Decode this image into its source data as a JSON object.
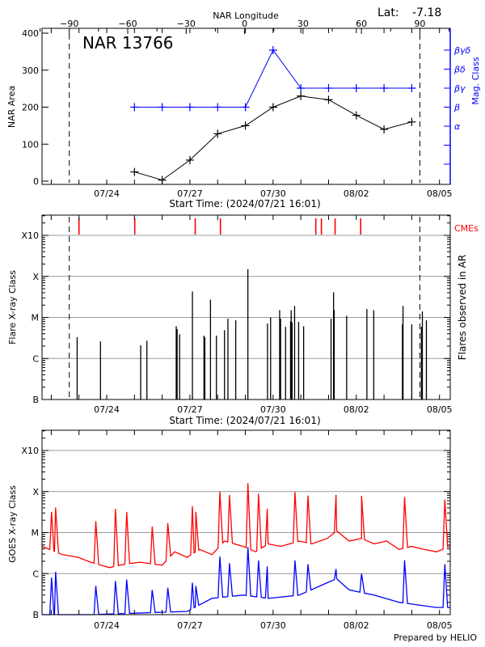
{
  "header": {
    "lat_label": "Lat:",
    "lat_value": "-7.18",
    "credit": "Prepared by HELIO"
  },
  "colors": {
    "area_line": "#000000",
    "mag_class_line": "#0000ff",
    "cme_marker": "#ff0000",
    "flare_bar": "#000000",
    "goes_long": "#ff0000",
    "goes_short": "#0000ff",
    "grid": "#999999"
  },
  "x_axis": {
    "range": [
      "07/21 16:01",
      "08/05 09:18"
    ],
    "year": 2024,
    "tick_labels": [
      "07/24",
      "07/27",
      "07/30",
      "08/02",
      "08/05"
    ],
    "minor_ticks": "daily",
    "title": "Start Time: (2024/07/21 16:01)"
  },
  "chart_data": [
    {
      "type": "line",
      "title": "NAR 13766",
      "top_axis": {
        "label": "NAR Longitude",
        "range": [
          -104,
          105.6
        ],
        "ticks": [
          -90,
          -60,
          -30,
          0,
          30,
          60,
          90
        ],
        "limb_lines": [
          -90,
          90
        ]
      },
      "ylabel": "NAR Area",
      "ylim": [
        0,
        400
      ],
      "yticks": [
        0,
        100,
        200,
        300,
        400
      ],
      "y2label": "Mag. Class",
      "y2_classes": [
        "α",
        "β",
        "βγ",
        "βδ",
        "βγδ"
      ],
      "series": [
        {
          "key": "area",
          "x": [
            "07/25 00:00",
            "07/26 00:00",
            "07/27 00:00",
            "07/28 00:00",
            "07/29 00:00",
            "07/30 00:00",
            "07/31 00:00",
            "08/01 00:00",
            "08/02 00:00",
            "08/03 00:00",
            "08/04 00:00"
          ],
          "values": [
            25,
            3,
            57,
            128,
            150,
            200,
            230,
            220,
            178,
            140,
            160
          ]
        },
        {
          "key": "mag_class",
          "x": [
            "07/25 00:00",
            "07/26 00:00",
            "07/27 00:00",
            "07/28 00:00",
            "07/29 00:00",
            "07/30 00:00",
            "07/31 00:00",
            "08/01 00:00",
            "08/02 00:00",
            "08/03 00:00",
            "08/04 00:00"
          ],
          "values": [
            "β",
            "β",
            "β",
            "β",
            "β",
            "βγδ",
            "βγ",
            "βγ",
            "βγ",
            "βγ",
            "βγ"
          ]
        }
      ]
    },
    {
      "type": "bar",
      "ylabel": "Flare X-ray Class",
      "y2label": "Flares observed in AR",
      "yscale": "log",
      "ytick_labels": [
        "B",
        "C",
        "M",
        "X",
        "X10"
      ],
      "cme_label": "CMEs",
      "cmes": [
        "07/23 00:00",
        "07/25 00:16",
        "07/27 04:35",
        "07/28 02:25",
        "07/31 12:56",
        "07/31 17:48",
        "08/01 05:40",
        "08/02 03:46"
      ],
      "flares": [
        [
          "07/22 22:24",
          "C3.3"
        ],
        [
          "07/23 18:36",
          "C2.6"
        ],
        [
          "07/25 05:24",
          "C2.1"
        ],
        [
          "07/25 10:47",
          "C2.7"
        ],
        [
          "07/26 12:09",
          "C6.1"
        ],
        [
          "07/26 12:56",
          "C5.2"
        ],
        [
          "07/26 15:06",
          "C3.9"
        ],
        [
          "07/27 02:10",
          "M4.3"
        ],
        [
          "07/27 12:09",
          "C3.6"
        ],
        [
          "07/27 12:56",
          "C3.3"
        ],
        [
          "07/27 17:48",
          "M2.7"
        ],
        [
          "07/27 22:55",
          "C3.6"
        ],
        [
          "07/28 05:56",
          "C4.9"
        ],
        [
          "07/28 08:54",
          "C9.3"
        ],
        [
          "07/28 15:39",
          "C8.5"
        ],
        [
          "07/29 02:10",
          "X1.5"
        ],
        [
          "07/29 19:09",
          "C7.1"
        ],
        [
          "07/29 21:50",
          "M1.0"
        ],
        [
          "07/30 05:40",
          "M1.5"
        ],
        [
          "07/30 06:29",
          "C9.3"
        ],
        [
          "07/30 10:47",
          "C5.9"
        ],
        [
          "07/30 15:06",
          "C8.1"
        ],
        [
          "07/30 15:39",
          "M1.5"
        ],
        [
          "07/30 16:26",
          "C7.6"
        ],
        [
          "07/30 18:36",
          "M1.9"
        ],
        [
          "07/30 22:06",
          "C7.8"
        ],
        [
          "07/31 02:25",
          "C6.1"
        ],
        [
          "08/01 02:10",
          "C9.3"
        ],
        [
          "08/01 04:19",
          "M4.1"
        ],
        [
          "08/01 04:51",
          "M1.5"
        ],
        [
          "08/01 15:39",
          "M1.1"
        ],
        [
          "08/02 09:10",
          "M1.6"
        ],
        [
          "08/02 15:06",
          "M1.5"
        ],
        [
          "08/03 15:55",
          "C6.8"
        ],
        [
          "08/03 16:26",
          "M1.9"
        ],
        [
          "08/04 00:00",
          "C6.8"
        ],
        [
          "08/04 08:21",
          "C5.9"
        ],
        [
          "08/04 09:10",
          "M1.4"
        ],
        [
          "08/04 12:40",
          "C8.5"
        ]
      ]
    },
    {
      "type": "line",
      "ylabel": "GOES X-ray Class",
      "yscale": "log",
      "ytick_labels": [
        "B",
        "C",
        "M",
        "X",
        "X10"
      ],
      "series": [
        {
          "key": "goes_long",
          "baseline": [
            [
              "07/21 16:10",
              4.6e-06
            ],
            [
              "07/22 09:42",
              2.9e-06
            ],
            [
              "07/22 23:12",
              2.5e-06
            ],
            [
              "07/23 10:00",
              1.9e-06
            ],
            [
              "07/24 02:10",
              1.4e-06
            ],
            [
              "07/24 15:39",
              1.7e-06
            ],
            [
              "07/25 05:07",
              1.9e-06
            ],
            [
              "07/26 00:00",
              1.6e-06
            ],
            [
              "07/26 10:47",
              3.4e-06
            ],
            [
              "07/26 21:34",
              2.5e-06
            ],
            [
              "07/27 08:21",
              3.9e-06
            ],
            [
              "07/27 19:09",
              2.9e-06
            ],
            [
              "07/28 05:56",
              6.2e-06
            ],
            [
              "07/28 22:06",
              4.6e-06
            ],
            [
              "07/29 08:54",
              3.4e-06
            ],
            [
              "07/29 19:41",
              5.3e-06
            ],
            [
              "07/30 06:29",
              4.6e-06
            ],
            [
              "07/30 22:39",
              6.2e-06
            ],
            [
              "07/31 09:26",
              5.3e-06
            ],
            [
              "07/31 22:55",
              7.2e-06
            ],
            [
              "08/01 07:00",
              1.1e-05
            ],
            [
              "08/01 17:48",
              6.2e-06
            ],
            [
              "08/02 04:35",
              7.2e-06
            ],
            [
              "08/02 15:22",
              5.3e-06
            ],
            [
              "08/03 02:10",
              6.2e-06
            ],
            [
              "08/03 12:56",
              3.9e-06
            ],
            [
              "08/03 23:44",
              4.6e-06
            ],
            [
              "08/04 10:31",
              3.9e-06
            ],
            [
              "08/04 21:19",
              3.4e-06
            ],
            [
              "08/05 09:00",
              4.6e-06
            ]
          ],
          "peaks": [
            [
              "07/22 00:16",
              3.2e-05
            ],
            [
              "07/22 03:46",
              4.1e-05
            ],
            [
              "07/23 14:34",
              1.9e-05
            ],
            [
              "07/24 07:33",
              3.8e-05
            ],
            [
              "07/24 17:15",
              3.2e-05
            ],
            [
              "07/25 15:22",
              1.4e-05
            ],
            [
              "07/26 04:51",
              1.7e-05
            ],
            [
              "07/27 02:10",
              4.4e-05
            ],
            [
              "07/27 05:07",
              3.2e-05
            ],
            [
              "07/28 01:54",
              0.0001
            ],
            [
              "07/28 10:15",
              8.2e-05
            ],
            [
              "07/29 02:10",
              0.00016
            ],
            [
              "07/29 11:20",
              8.9e-05
            ],
            [
              "07/29 18:53",
              3.8e-05
            ],
            [
              "07/30 18:53",
              9.7e-05
            ],
            [
              "07/31 06:12",
              8e-05
            ],
            [
              "08/01 06:29",
              8.3e-05
            ],
            [
              "08/02 04:35",
              7.8e-05
            ],
            [
              "08/03 17:48",
              7.4e-05
            ],
            [
              "08/05 04:35",
              6.4e-05
            ]
          ]
        },
        {
          "key": "goes_short",
          "baseline": [
            [
              "07/21 16:10",
              1e-07
            ],
            [
              "07/23 10:00",
              1e-07
            ],
            [
              "07/26 21:34",
              1.2e-07
            ],
            [
              "07/27 19:09",
              2.5e-07
            ],
            [
              "07/28 22:06",
              3e-07
            ],
            [
              "07/29 19:41",
              2.5e-07
            ],
            [
              "07/30 22:39",
              3e-07
            ],
            [
              "07/31 22:55",
              6e-07
            ],
            [
              "08/01 07:00",
              7.5e-07
            ],
            [
              "08/01 17:48",
              4e-07
            ],
            [
              "08/02 15:22",
              3e-07
            ],
            [
              "08/03 12:56",
              2e-07
            ],
            [
              "08/04 21:19",
              1.5e-07
            ],
            [
              "08/05 09:00",
              1.5e-07
            ]
          ],
          "peaks": [
            [
              "07/22 00:16",
              8e-07
            ],
            [
              "07/22 03:46",
              1.1e-06
            ],
            [
              "07/23 14:34",
              5e-07
            ],
            [
              "07/24 07:33",
              6.6e-07
            ],
            [
              "07/24 17:15",
              7.2e-07
            ],
            [
              "07/25 15:22",
              4e-07
            ],
            [
              "07/26 04:51",
              4.5e-07
            ],
            [
              "07/27 02:10",
              6e-07
            ],
            [
              "07/27 05:07",
              5e-07
            ],
            [
              "07/28 01:54",
              2.6e-06
            ],
            [
              "07/28 10:15",
              1.8e-06
            ],
            [
              "07/29 02:10",
              4.4e-06
            ],
            [
              "07/29 11:20",
              2.1e-06
            ],
            [
              "07/29 18:53",
              1.5e-06
            ],
            [
              "07/30 18:53",
              2.1e-06
            ],
            [
              "07/31 06:12",
              1.7e-06
            ],
            [
              "08/01 06:29",
              1.3e-06
            ],
            [
              "08/02 04:35",
              1e-06
            ],
            [
              "08/03 17:48",
              2.1e-06
            ],
            [
              "08/05 04:35",
              1.7e-06
            ]
          ]
        }
      ]
    }
  ]
}
